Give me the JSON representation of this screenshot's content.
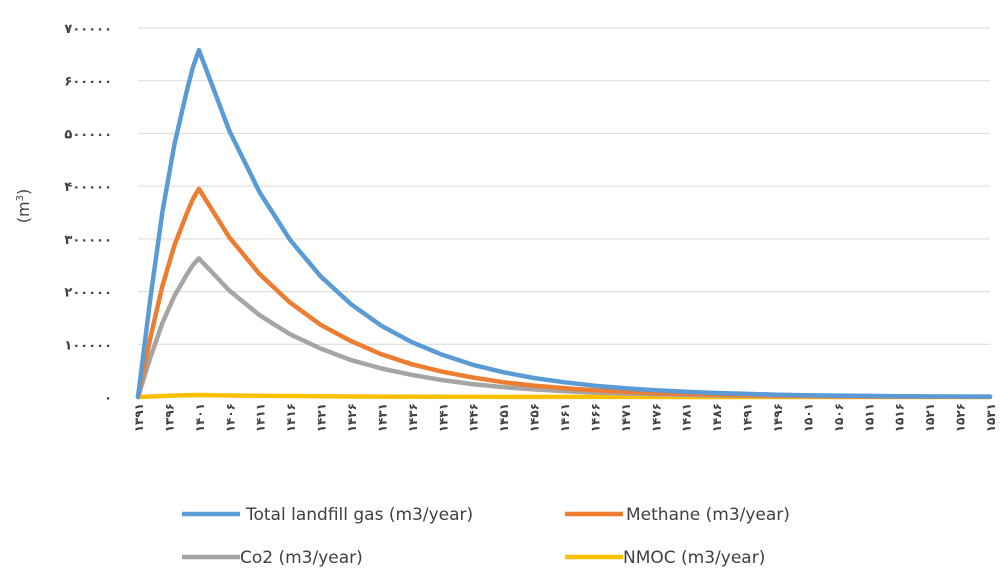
{
  "chart_data": {
    "type": "line",
    "ylabel": "(m3)",
    "ylabel_base": "(m",
    "ylabel_sup": "3",
    "ylabel_close": ")",
    "ylim": [
      0,
      700000
    ],
    "yticks": [
      0,
      100000,
      200000,
      300000,
      400000,
      500000,
      600000,
      700000
    ],
    "ytick_labels": [
      "۰",
      "۱۰۰۰۰۰",
      "۲۰۰۰۰۰",
      "۳۰۰۰۰۰",
      "۴۰۰۰۰۰",
      "۵۰۰۰۰۰",
      "۶۰۰۰۰۰",
      "۷۰۰۰۰۰"
    ],
    "x_start": 1391,
    "x_end": 1531,
    "x_tick_values": [
      1391,
      1396,
      1401,
      1406,
      1411,
      1416,
      1421,
      1426,
      1431,
      1436,
      1441,
      1446,
      1451,
      1456,
      1461,
      1466,
      1471,
      1476,
      1481,
      1486,
      1491,
      1496,
      1501,
      1506,
      1511,
      1516,
      1521,
      1526,
      1531
    ],
    "x_tick_labels": [
      "۱۳۹۱",
      "۱۳۹۶",
      "۱۴۰۱",
      "۱۴۰۶",
      "۱۴۱۱",
      "۱۴۱۶",
      "۱۴۲۱",
      "۱۴۲۶",
      "۱۴۳۱",
      "۱۴۳۶",
      "۱۴۴۱",
      "۱۴۴۶",
      "۱۴۵۱",
      "۱۴۵۶",
      "۱۴۶۱",
      "۱۴۶۶",
      "۱۴۷۱",
      "۱۴۷۶",
      "۱۴۸۱",
      "۱۴۸۶",
      "۱۴۹۱",
      "۱۴۹۶",
      "۱۵۰۱",
      "۱۵۰۶",
      "۱۵۱۱",
      "۱۵۱۶",
      "۱۵۲۱",
      "۱۵۲۶",
      "۱۵۳۱"
    ],
    "grid": true,
    "legend_position": "bottom",
    "series": [
      {
        "name": "Total landfill gas (m3/year)",
        "color": "#5B9BD5",
        "x": [
          1391,
          1393,
          1395,
          1397,
          1399,
          1400,
          1401,
          1406,
          1411,
          1416,
          1421,
          1426,
          1431,
          1436,
          1441,
          1446,
          1451,
          1456,
          1461,
          1466,
          1471,
          1476,
          1481,
          1486,
          1491,
          1496,
          1501,
          1506,
          1511,
          1516,
          1521,
          1526,
          1531
        ],
        "values": [
          0,
          185000,
          350000,
          480000,
          580000,
          625000,
          658000,
          505000,
          388000,
          298000,
          229000,
          176000,
          135000,
          104000,
          80000,
          61000,
          47000,
          36000,
          28000,
          21500,
          16500,
          12700,
          9800,
          7500,
          5800,
          4400,
          3400,
          2600,
          2000,
          1550,
          1200,
          900,
          700
        ]
      },
      {
        "name": "Methane (m3/year)",
        "color": "#ED7D31",
        "x": [
          1391,
          1393,
          1395,
          1397,
          1399,
          1400,
          1401,
          1406,
          1411,
          1416,
          1421,
          1426,
          1431,
          1436,
          1441,
          1446,
          1451,
          1456,
          1461,
          1466,
          1471,
          1476,
          1481,
          1486,
          1491,
          1496,
          1501,
          1506,
          1511,
          1516,
          1521,
          1526,
          1531
        ],
        "values": [
          0,
          111000,
          210000,
          288000,
          348000,
          375000,
          395000,
          303000,
          233000,
          179000,
          137000,
          106000,
          81000,
          62000,
          48000,
          37000,
          28000,
          21600,
          16800,
          12900,
          9900,
          7600,
          5900,
          4500,
          3500,
          2600,
          2000,
          1600,
          1200,
          930,
          720,
          540,
          420
        ]
      },
      {
        "name": "Co2 (m3/year)",
        "color": "#A5A5A5",
        "x": [
          1391,
          1393,
          1395,
          1397,
          1399,
          1400,
          1401,
          1406,
          1411,
          1416,
          1421,
          1426,
          1431,
          1436,
          1441,
          1446,
          1451,
          1456,
          1461,
          1466,
          1471,
          1476,
          1481,
          1486,
          1491,
          1496,
          1501,
          1506,
          1511,
          1516,
          1521,
          1526,
          1531
        ],
        "values": [
          0,
          74000,
          140000,
          192000,
          232000,
          250000,
          263000,
          202000,
          155000,
          119000,
          92000,
          70000,
          54000,
          42000,
          32000,
          24400,
          18800,
          14400,
          11200,
          8600,
          6600,
          5100,
          3900,
          3000,
          2300,
          1760,
          1360,
          1040,
          800,
          620,
          480,
          360,
          280
        ]
      },
      {
        "name": "NMOC (m3/year)",
        "color": "#FFC000",
        "x": [
          1391,
          1396,
          1401,
          1406,
          1411,
          1421,
          1431,
          1441,
          1451,
          1461,
          1471,
          1481,
          1491,
          1501,
          1511,
          1521,
          1531
        ],
        "values": [
          0,
          2500,
          3700,
          2900,
          2200,
          1300,
          800,
          450,
          270,
          160,
          95,
          55,
          33,
          20,
          12,
          7,
          4
        ]
      }
    ]
  }
}
